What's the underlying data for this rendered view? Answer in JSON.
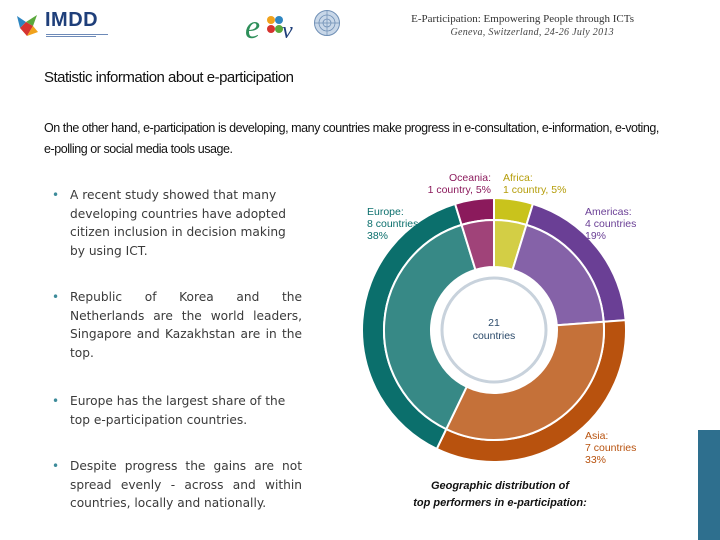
{
  "header": {
    "logo_text": "IMDD",
    "conference_title": "E-Participation: Empowering People through ICTs",
    "conference_subtitle": "Geneva, Switzerland, 24-26 July 2013",
    "logos": [
      "imdd-logo",
      "egov-logo",
      "un-emblem"
    ]
  },
  "title": "Statistic information about e-participation",
  "intro": "On the other hand, e-participation is developing, many countries make progress in e-consultation, e-information, e-voting, e-polling or social media tools usage.",
  "bullets": [
    {
      "text": " A recent study showed that many developing countries have adopted citizen inclusion in decision making by using ICT."
    },
    {
      "text": "Republic of Korea and the Netherlands are the world leaders, Singapore and Kazakhstan are in the top."
    },
    {
      "text": "Europe has the largest share of the top e-participation countries."
    },
    {
      "text": "Despite progress the gains are not spread evenly - across and within countries, locally and nationally."
    }
  ],
  "chart_data": {
    "type": "pie",
    "center_label": [
      "21",
      "countries"
    ],
    "total": 21,
    "series": [
      {
        "name": "Africa",
        "countries": 1,
        "share": 5,
        "label": [
          "Africa:",
          "1 country, 5%"
        ],
        "color": "#c9c31c"
      },
      {
        "name": "Americas",
        "countries": 4,
        "share": 19,
        "label": [
          "Americas:",
          "4 countries",
          "19%"
        ],
        "color": "#6a3f95"
      },
      {
        "name": "Asia",
        "countries": 7,
        "share": 33,
        "label": [
          "Asia:",
          "7 countries",
          "33%"
        ],
        "color": "#b8520e"
      },
      {
        "name": "Europe",
        "countries": 8,
        "share": 38,
        "label": [
          "Europe:",
          "8 countries",
          "38%"
        ],
        "color": "#0b6f6c"
      },
      {
        "name": "Oceania",
        "countries": 1,
        "share": 5,
        "label": [
          "Oceania:",
          "1 country, 5%"
        ],
        "color": "#8b1a5c"
      }
    ]
  },
  "caption": [
    "Geographic distribution of",
    "top performers in e-participation:"
  ]
}
